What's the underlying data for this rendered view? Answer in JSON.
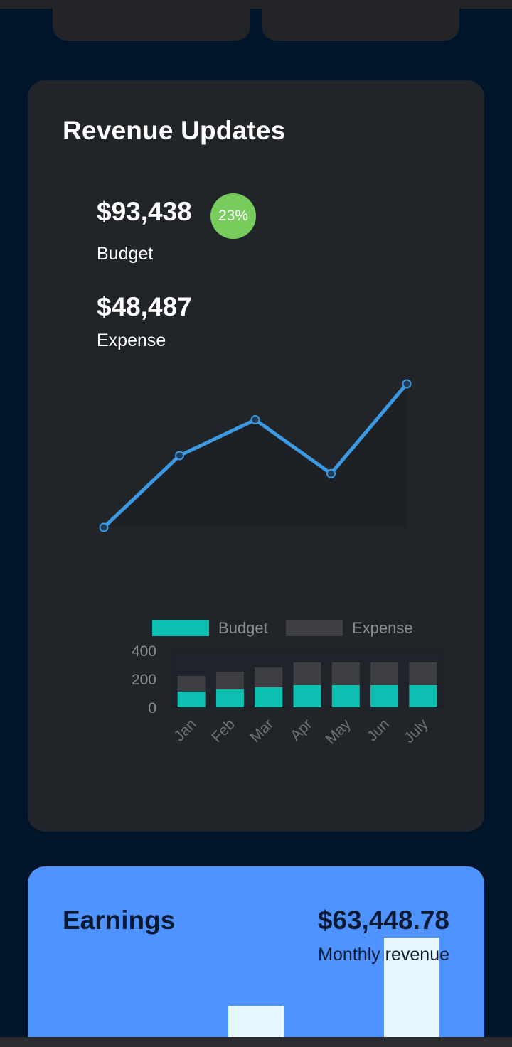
{
  "revenue": {
    "title": "Revenue Updates",
    "budget_amount": "$93,438",
    "growth_badge": "23%",
    "budget_label": "Budget",
    "expense_amount": "$48,487",
    "expense_label": "Expense",
    "line_chart": {
      "type": "line",
      "values": [
        0,
        40,
        60,
        30,
        80
      ],
      "color": "#3b9ae1"
    }
  },
  "chart_data": {
    "type": "bar",
    "stacked": true,
    "categories": [
      "Jan",
      "Feb",
      "Mar",
      "Apr",
      "May",
      "Jun",
      "July"
    ],
    "series": [
      {
        "name": "Budget",
        "color": "#0dbfb0",
        "values": [
          110,
          125,
          140,
          155,
          155,
          155,
          155
        ]
      },
      {
        "name": "Expense",
        "color": "#3e3f42",
        "values": [
          110,
          125,
          140,
          160,
          160,
          160,
          160
        ]
      }
    ],
    "yticks": [
      0,
      200,
      400
    ],
    "ylim": [
      0,
      400
    ],
    "legend": "top",
    "grid": false
  },
  "earnings": {
    "title": "Earnings",
    "amount": "$63,448.78",
    "subtitle": "Monthly revenue",
    "bar_color": "#e6f6ff",
    "bars": [
      0,
      0,
      0.35,
      0,
      1
    ]
  }
}
